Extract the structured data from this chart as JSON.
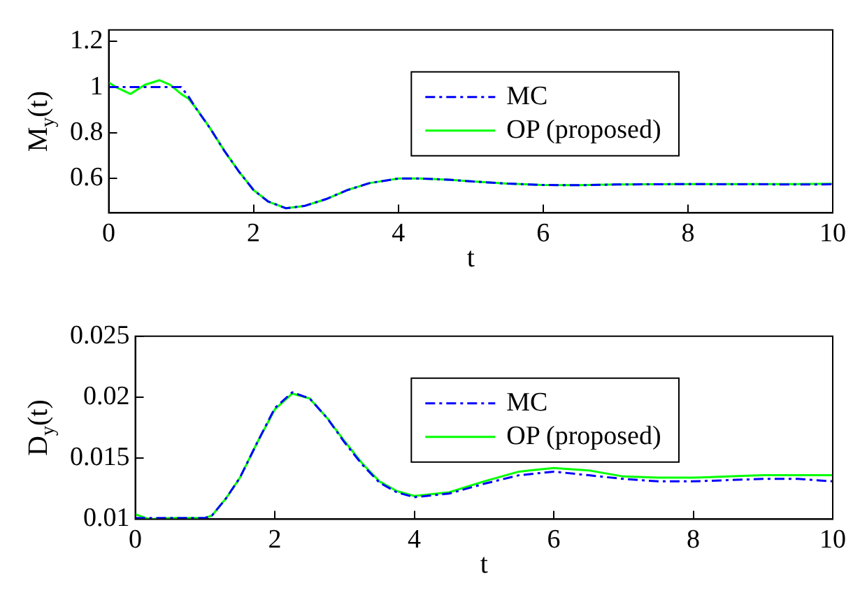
{
  "chart_data": [
    {
      "type": "line",
      "xlabel": "t",
      "ylabel": "M$_{y}$(t)",
      "xlim": [
        0,
        10
      ],
      "ylim": [
        0.45,
        1.25
      ],
      "xticks": [
        0,
        2,
        4,
        6,
        8,
        10
      ],
      "yticks": [
        0.6,
        0.8,
        1,
        1.2
      ],
      "grid": false,
      "legend": "top right",
      "marker": "none",
      "series": [
        {
          "name": "MC",
          "color": "#0000ff",
          "line_style": "dashed",
          "x": [
            0,
            0.5,
            1.0,
            1.1,
            1.2,
            1.4,
            1.6,
            1.8,
            2.0,
            2.2,
            2.45,
            2.7,
            3.0,
            3.3,
            3.6,
            4.0,
            4.3,
            4.7,
            5.0,
            5.5,
            6.0,
            6.5,
            7.0,
            7.5,
            8.0,
            8.5,
            9.0,
            9.5,
            10
          ],
          "values": [
            1.0,
            1.0,
            1.0,
            0.96,
            0.91,
            0.82,
            0.72,
            0.63,
            0.55,
            0.5,
            0.47,
            0.48,
            0.51,
            0.55,
            0.58,
            0.6,
            0.6,
            0.595,
            0.588,
            0.578,
            0.572,
            0.571,
            0.574,
            0.575,
            0.576,
            0.575,
            0.575,
            0.574,
            0.575
          ]
        },
        {
          "name": "OP (proposed)",
          "color": "#00ff00",
          "line_style": "solid",
          "x": [
            0,
            0.1,
            0.3,
            0.5,
            0.7,
            0.85,
            1.0,
            1.1,
            1.2,
            1.4,
            1.6,
            1.8,
            2.0,
            2.2,
            2.45,
            2.7,
            3.0,
            3.3,
            3.6,
            4.0,
            4.3,
            4.7,
            5.0,
            5.5,
            6.0,
            6.5,
            7.0,
            7.5,
            8.0,
            8.5,
            9.0,
            9.5,
            10
          ],
          "values": [
            1.02,
            1.0,
            0.97,
            1.01,
            1.03,
            1.01,
            0.97,
            0.95,
            0.91,
            0.82,
            0.72,
            0.63,
            0.55,
            0.5,
            0.47,
            0.48,
            0.51,
            0.55,
            0.58,
            0.6,
            0.6,
            0.595,
            0.588,
            0.578,
            0.572,
            0.571,
            0.574,
            0.575,
            0.576,
            0.576,
            0.576,
            0.576,
            0.577
          ]
        }
      ]
    },
    {
      "type": "line",
      "xlabel": "t",
      "ylabel": "D$_{y}$(t)",
      "xlim": [
        0,
        10
      ],
      "ylim": [
        0.01,
        0.025
      ],
      "xticks": [
        0,
        2,
        4,
        6,
        8,
        10
      ],
      "yticks": [
        0.01,
        0.015,
        0.02,
        0.025
      ],
      "grid": false,
      "legend": "top right",
      "marker": "none",
      "series": [
        {
          "name": "MC",
          "color": "#0000ff",
          "line_style": "dashed",
          "x": [
            0,
            0.5,
            1.0,
            1.1,
            1.3,
            1.5,
            1.75,
            2.0,
            2.25,
            2.5,
            2.75,
            3.0,
            3.25,
            3.5,
            3.75,
            4.0,
            4.5,
            5.0,
            5.5,
            6.0,
            6.5,
            7.0,
            7.5,
            8.0,
            8.5,
            9.0,
            9.5,
            10
          ],
          "values": [
            0.0101,
            0.0101,
            0.0101,
            0.0103,
            0.0117,
            0.0134,
            0.0163,
            0.0191,
            0.0204,
            0.0199,
            0.0183,
            0.0163,
            0.0145,
            0.013,
            0.0122,
            0.0118,
            0.0121,
            0.0129,
            0.0136,
            0.0139,
            0.0136,
            0.0133,
            0.0131,
            0.0131,
            0.0132,
            0.0133,
            0.0133,
            0.0131
          ]
        },
        {
          "name": "OP (proposed)",
          "color": "#00ff00",
          "line_style": "solid",
          "x": [
            0,
            0.2,
            0.5,
            1.0,
            1.1,
            1.3,
            1.5,
            1.75,
            2.0,
            2.25,
            2.5,
            2.75,
            3.0,
            3.25,
            3.5,
            3.75,
            4.0,
            4.5,
            5.0,
            5.5,
            6.0,
            6.5,
            7.0,
            7.5,
            8.0,
            8.5,
            9.0,
            9.5,
            10
          ],
          "values": [
            0.0104,
            0.01,
            0.0101,
            0.0101,
            0.0103,
            0.0117,
            0.0134,
            0.0163,
            0.019,
            0.0203,
            0.0199,
            0.0183,
            0.0164,
            0.0146,
            0.0131,
            0.0123,
            0.0119,
            0.0122,
            0.0131,
            0.0139,
            0.0142,
            0.014,
            0.0135,
            0.0134,
            0.0134,
            0.0135,
            0.0136,
            0.0136,
            0.0136
          ]
        }
      ]
    }
  ]
}
